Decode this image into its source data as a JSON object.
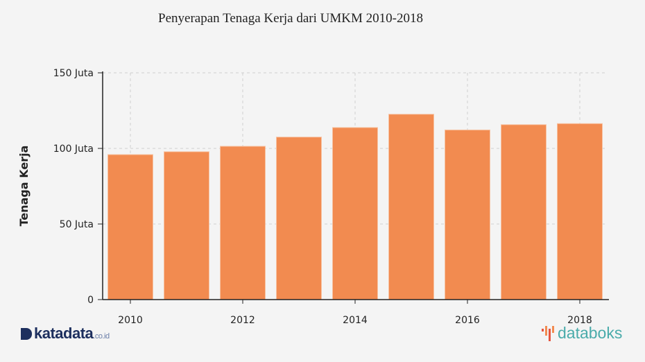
{
  "chart_data": {
    "type": "bar",
    "title": "Penyerapan Tenaga Kerja dari UMKM 2010-2018",
    "xlabel": "",
    "ylabel": "Tenaga Kerja",
    "categories": [
      "2010",
      "2011",
      "2012",
      "2013",
      "2014",
      "2015",
      "2016",
      "2017",
      "2018"
    ],
    "values": [
      95.9,
      97.8,
      101.4,
      107.5,
      113.8,
      122.6,
      112.2,
      115.7,
      116.4
    ],
    "unit": "Juta",
    "ylim": [
      0,
      150
    ],
    "yticks": [
      {
        "v": 0,
        "label": "0"
      },
      {
        "v": 50,
        "label": "50 Juta"
      },
      {
        "v": 100,
        "label": "100 Juta"
      },
      {
        "v": 150,
        "label": "150 Juta"
      }
    ],
    "xticks": [
      "2010",
      "2012",
      "2014",
      "2016",
      "2018"
    ],
    "grid": true,
    "bar_color": "#f28b50"
  },
  "branding": {
    "left_logo": "katadata",
    "left_logo_suffix": ".co.id",
    "right_logo": "databoks"
  }
}
